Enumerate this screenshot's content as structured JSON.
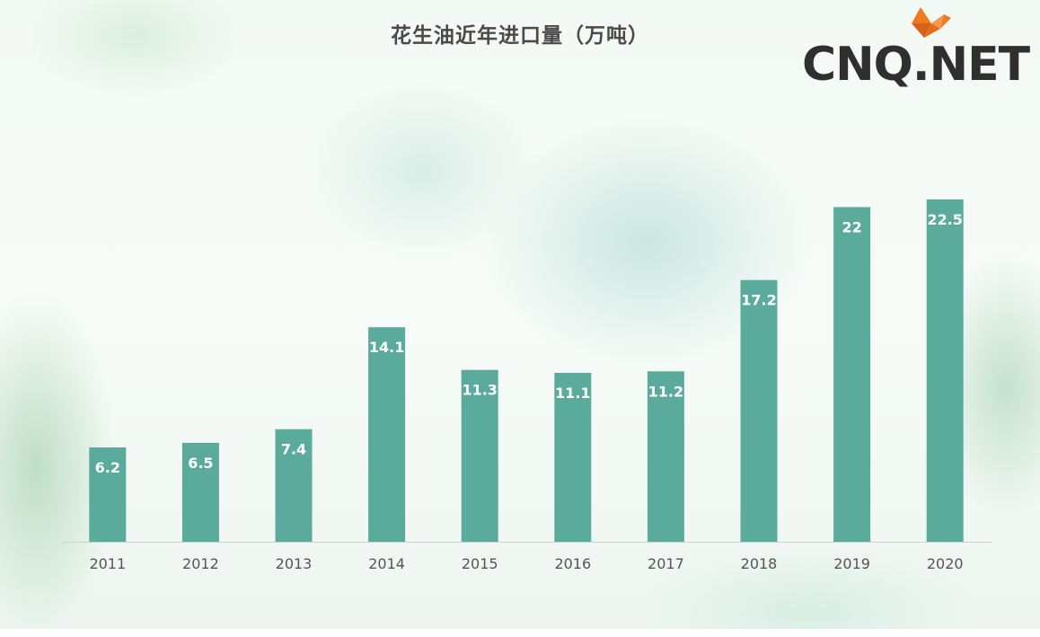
{
  "brand": {
    "logo_text": "CNQ.NET",
    "logo_accent": "#f07a1e"
  },
  "chart_data": {
    "type": "bar",
    "title": "花生油近年进口量（万吨）",
    "categories": [
      "2011",
      "2012",
      "2013",
      "2014",
      "2015",
      "2016",
      "2017",
      "2018",
      "2019",
      "2020"
    ],
    "values": [
      6.2,
      6.5,
      7.4,
      14.1,
      11.3,
      11.1,
      11.2,
      17.2,
      22,
      22.5
    ],
    "data_labels": [
      "6.2",
      "6.5",
      "7.4",
      "14.1",
      "11.3",
      "11.1",
      "11.2",
      "17.2",
      "22",
      "22.5"
    ],
    "xlabel": "",
    "ylabel": "",
    "ylim": [
      0,
      24
    ],
    "grid": false,
    "bar_color": "#5aab9c",
    "axis_color": "#d0d0d0"
  }
}
